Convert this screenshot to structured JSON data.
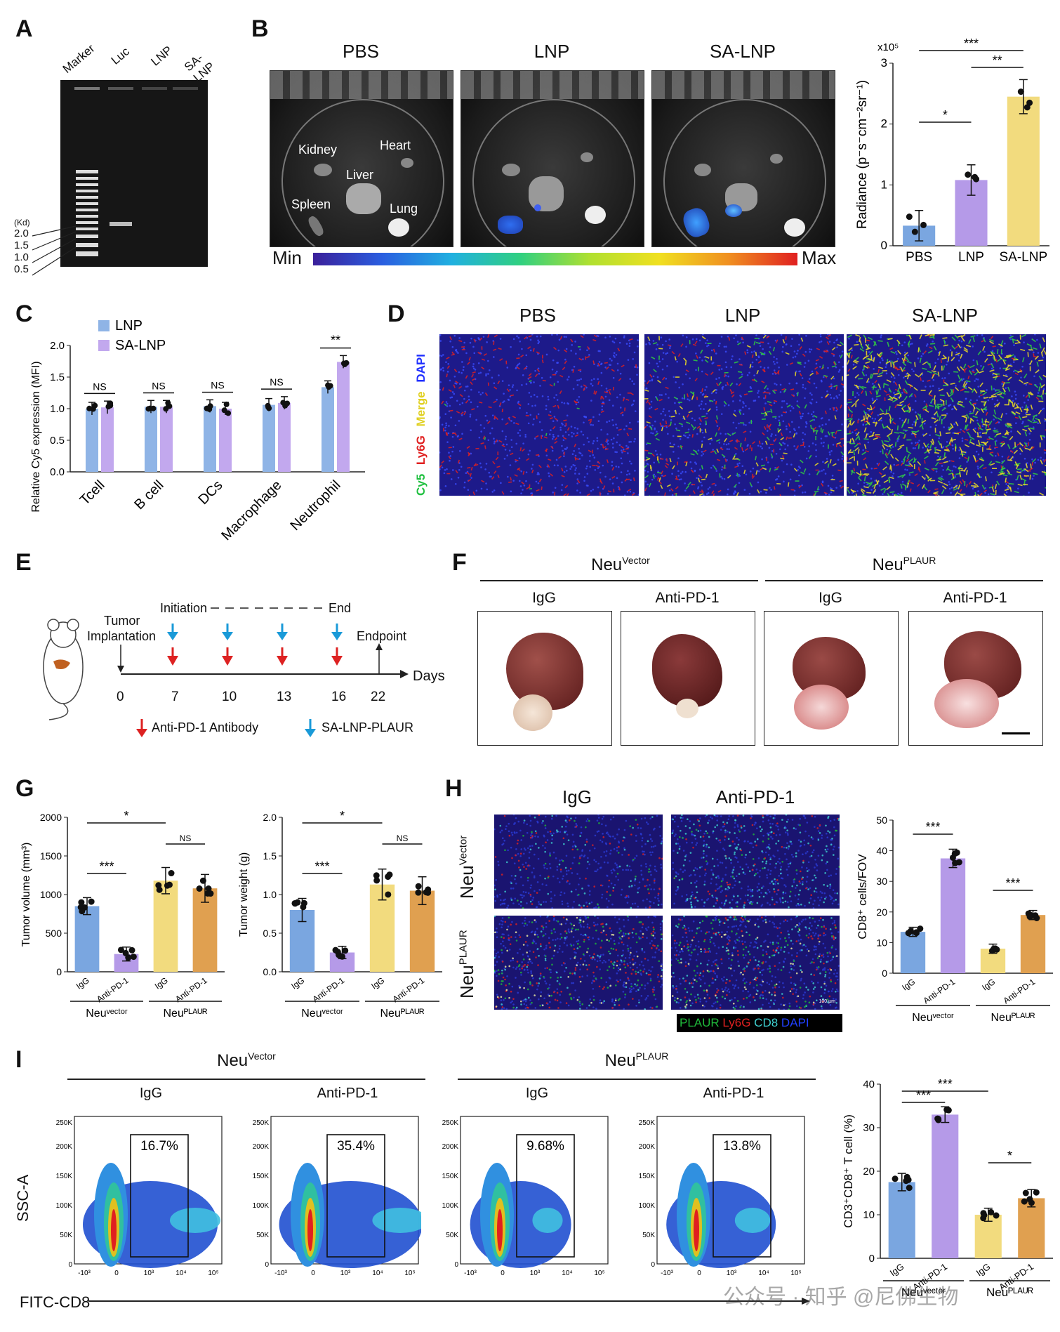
{
  "panels": {
    "A": {
      "label": "A",
      "lanes": [
        "Marker",
        "Luc",
        "LNP",
        "SA-LNP"
      ],
      "ladder_unit": "(Kd)",
      "ladder": [
        "2.0",
        "1.5",
        "1.0",
        "0.5"
      ]
    },
    "B": {
      "label": "B",
      "groups": [
        "PBS",
        "LNP",
        "SA-LNP"
      ],
      "organs": [
        "Kidney",
        "Heart",
        "Liver",
        "Spleen",
        "Lung"
      ],
      "scale_min": "Min",
      "scale_max": "Max",
      "y_exp": "x10⁵",
      "ylabel": "Radiance (p⁻s⁻cm⁻²sr⁻¹)",
      "sig": [
        "***",
        "*",
        "**"
      ]
    },
    "C": {
      "label": "C",
      "legend": [
        "LNP",
        "SA-LNP"
      ],
      "ylabel": "Relative Cy5 expression (MFI)",
      "sig": [
        "NS",
        "NS",
        "NS",
        "NS",
        "**"
      ]
    },
    "D": {
      "label": "D",
      "groups": [
        "PBS",
        "LNP",
        "SA-LNP"
      ],
      "channels": [
        "Cy5",
        "Ly6G",
        "Merge",
        "DAPI"
      ]
    },
    "E": {
      "label": "E",
      "tumor": "Tumor",
      "implant": "Implantation",
      "initiation": "Initiation",
      "end": "End",
      "endpoint": "Endpoint",
      "days_label": "Days",
      "days": [
        "0",
        "7",
        "10",
        "13",
        "16",
        "22"
      ],
      "legend_red": "Anti-PD-1 Antibody",
      "legend_blue": "SA-LNP-PLAUR"
    },
    "F": {
      "label": "F",
      "group1": "Neu",
      "group1_sup": "Vector",
      "group2": "Neu",
      "group2_sup": "PLAUR",
      "cols": [
        "IgG",
        "Anti-PD-1",
        "IgG",
        "Anti-PD-1"
      ]
    },
    "G": {
      "label": "G"
    },
    "H": {
      "label": "H",
      "cols": [
        "IgG",
        "Anti-PD-1"
      ],
      "row1": "Neu",
      "row1_sup": "Vector",
      "row2": "Neu",
      "row2_sup": "PLAUR",
      "stain": [
        "PLAUR",
        "Ly6G",
        "CD8",
        "DAPI"
      ],
      "stain_colors": [
        "#1fb83a",
        "#e02020",
        "#3fd0d0",
        "#2040ff"
      ],
      "scale_txt": "100 µm"
    },
    "I": {
      "label": "I",
      "g1": "Neu",
      "g1_sup": "Vector",
      "g2": "Neu",
      "g2_sup": "PLAUR",
      "subs": [
        "IgG",
        "Anti-PD-1",
        "IgG",
        "Anti-PD-1"
      ],
      "pcts": [
        "16.7%",
        "35.4%",
        "9.68%",
        "13.8%"
      ],
      "y_axis": "SSC-A",
      "x_axis": "FITC-CD8",
      "yticks": [
        "250K",
        "200K",
        "150K",
        "100K",
        "50K",
        "0"
      ],
      "xticks": [
        "-10³",
        "0",
        "10³",
        "10⁴",
        "10⁵"
      ],
      "watermark": "公众号 · 知乎 @尼佛生物"
    }
  },
  "chart_data": [
    {
      "panel": "B",
      "type": "bar",
      "title": "",
      "categories": [
        "PBS",
        "LNP",
        "SA-LNP"
      ],
      "values": [
        0.33,
        1.08,
        2.45
      ],
      "errors": [
        0.25,
        0.25,
        0.28
      ],
      "ylabel": "Radiance (p⁻s⁻cm⁻²sr⁻¹)",
      "ylim": [
        0,
        3
      ],
      "yticks": [
        0,
        1,
        2,
        3
      ],
      "colors": [
        "#7aa6e0",
        "#b59ae8",
        "#f2db7e"
      ],
      "sig": [
        {
          "pair": [
            "PBS",
            "SA-LNP"
          ],
          "label": "***"
        },
        {
          "pair": [
            "PBS",
            "LNP"
          ],
          "label": "*"
        },
        {
          "pair": [
            "LNP",
            "SA-LNP"
          ],
          "label": "**"
        }
      ]
    },
    {
      "panel": "C",
      "type": "bar",
      "categories": [
        "Tcell",
        "B cell",
        "DCs",
        "Macrophage",
        "Neutrophil"
      ],
      "series": [
        {
          "name": "LNP",
          "values": [
            1.0,
            1.03,
            1.04,
            1.06,
            1.34
          ],
          "color": "#8fb4e6"
        },
        {
          "name": "SA-LNP",
          "values": [
            1.02,
            1.03,
            1.0,
            1.09,
            1.74
          ],
          "color": "#c2a8ee"
        }
      ],
      "ylabel": "Relative Cy5 expression (MFI)",
      "ylim": [
        0,
        2.0
      ],
      "yticks": [
        0.0,
        0.5,
        1.0,
        1.5,
        2.0
      ],
      "sig": [
        "NS",
        "NS",
        "NS",
        "NS",
        "**"
      ]
    },
    {
      "panel": "G1",
      "type": "bar",
      "categories": [
        "IgG",
        "Anti-PD-1",
        "IgG",
        "Anti-PD-1"
      ],
      "values": [
        850,
        230,
        1180,
        1080
      ],
      "errors": [
        110,
        90,
        170,
        180
      ],
      "ylabel": "Tumor volume (mm³)",
      "ylim": [
        0,
        2000
      ],
      "yticks": [
        0,
        500,
        1000,
        1500,
        2000
      ],
      "colors": [
        "#7aa6e0",
        "#b59ae8",
        "#f2db7e",
        "#e0a050"
      ],
      "groups": [
        "Neuᵛᵉᶜᵗᵒʳ",
        "Neuᴾᴸᴬᵁᴿ"
      ],
      "sig": [
        {
          "pair": [
            0,
            2
          ],
          "label": "*"
        },
        {
          "pair": [
            0,
            1
          ],
          "label": "***"
        },
        {
          "pair": [
            2,
            3
          ],
          "label": "NS"
        }
      ]
    },
    {
      "panel": "G2",
      "type": "bar",
      "categories": [
        "IgG",
        "Anti-PD-1",
        "IgG",
        "Anti-PD-1"
      ],
      "values": [
        0.8,
        0.25,
        1.13,
        1.05
      ],
      "errors": [
        0.15,
        0.08,
        0.2,
        0.18
      ],
      "ylabel": "Tumor weight (g)",
      "ylim": [
        0,
        2.0
      ],
      "yticks": [
        0.0,
        0.5,
        1.0,
        1.5,
        2.0
      ],
      "colors": [
        "#7aa6e0",
        "#b59ae8",
        "#f2db7e",
        "#e0a050"
      ],
      "groups": [
        "Neuᵛᵉᶜᵗᵒʳ",
        "Neuᴾᴸᴬᵁᴿ"
      ],
      "sig": [
        {
          "pair": [
            0,
            2
          ],
          "label": "*"
        },
        {
          "pair": [
            0,
            1
          ],
          "label": "***"
        },
        {
          "pair": [
            2,
            3
          ],
          "label": "NS"
        }
      ]
    },
    {
      "panel": "H",
      "type": "bar",
      "categories": [
        "IgG",
        "Anti-PD-1",
        "IgG",
        "Anti-PD-1"
      ],
      "values": [
        13.5,
        37.5,
        8,
        19
      ],
      "errors": [
        1.5,
        3,
        1.5,
        1.5
      ],
      "ylabel": "CD8⁺ cells/FOV",
      "ylim": [
        0,
        50
      ],
      "yticks": [
        0,
        10,
        20,
        30,
        40,
        50
      ],
      "colors": [
        "#7aa6e0",
        "#b59ae8",
        "#f2db7e",
        "#e0a050"
      ],
      "groups": [
        "Neuᵛᵉᶜᵗᵒʳ",
        "Neuᴾᴸᴬᵁᴿ"
      ],
      "sig": [
        {
          "pair": [
            0,
            1
          ],
          "label": "***"
        },
        {
          "pair": [
            2,
            3
          ],
          "label": "***"
        }
      ]
    },
    {
      "panel": "I",
      "type": "bar",
      "categories": [
        "IgG",
        "Anti-PD-1",
        "IgG",
        "Anti-PD-1"
      ],
      "values": [
        17.5,
        33,
        10,
        13.8
      ],
      "errors": [
        2,
        1.8,
        1.5,
        2
      ],
      "ylabel": "CD3⁺CD8⁺ T cell (%)",
      "ylim": [
        0,
        40
      ],
      "yticks": [
        0,
        10,
        20,
        30,
        40
      ],
      "colors": [
        "#7aa6e0",
        "#b59ae8",
        "#f2db7e",
        "#e0a050"
      ],
      "groups": [
        "Neuᵛᵉᶜᵗᵒʳ",
        "Neuᴾᴸᴬᵁᴿ"
      ],
      "sig": [
        {
          "pair": [
            0,
            1
          ],
          "label": "***"
        },
        {
          "pair": [
            0,
            2
          ],
          "label": "***"
        },
        {
          "pair": [
            2,
            3
          ],
          "label": "*"
        }
      ]
    }
  ],
  "colors": {
    "tcell_blue": "#2a3bd6",
    "ly6g_red": "#e02020",
    "cy5_green": "#30d040",
    "merge_yellow": "#f0e020"
  }
}
